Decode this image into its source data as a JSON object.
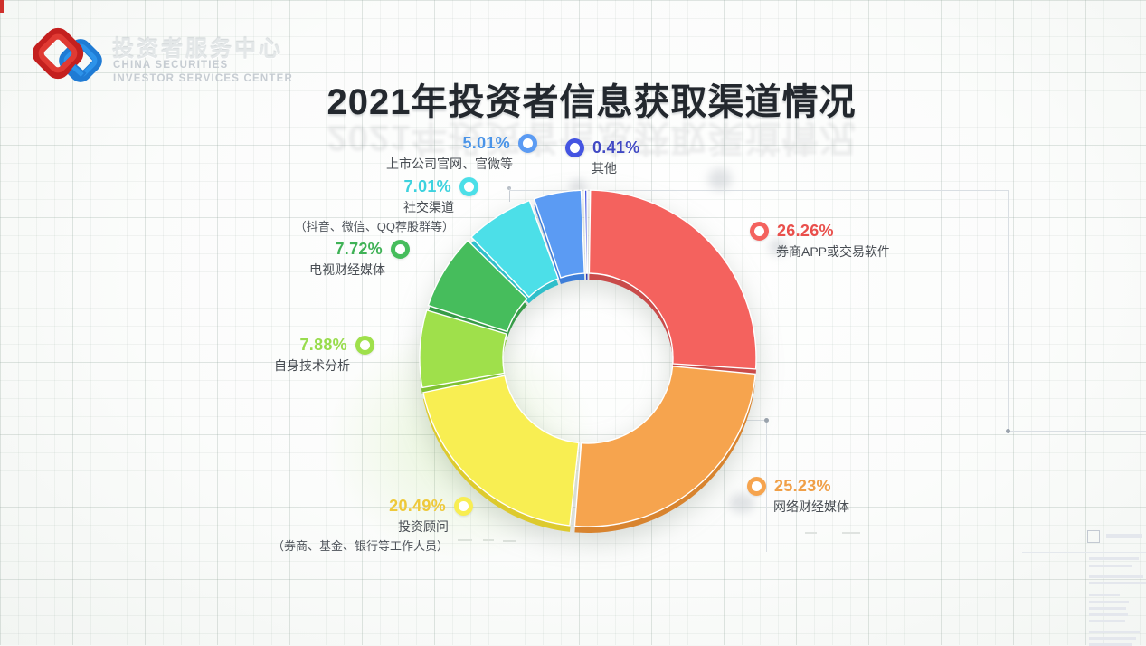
{
  "brand": {
    "logo_title": "投资者服务中心",
    "logo_subtitle_line1": "CHINA SECURITIES",
    "logo_subtitle_line2": "INVESTOR SERVICES CENTER"
  },
  "title": "2021年投资者信息获取渠道情况",
  "chart_data": {
    "type": "pie",
    "variant": "donut",
    "title": "2021年投资者信息获取渠道情况",
    "start_angle_deg": 0,
    "direction": "clockwise",
    "unit": "%",
    "series": [
      {
        "label": "券商APP或交易软件",
        "value": 26.26,
        "percent": "26.26%",
        "color": "#f4625e",
        "dark": "#c94b4a",
        "text_color": "#e94f4b"
      },
      {
        "label": "网络财经媒体",
        "value": 25.23,
        "percent": "25.23%",
        "color": "#f6a44e",
        "dark": "#d8842f",
        "text_color": "#f09f47"
      },
      {
        "label": "投资顾问",
        "sublabel": "（券商、基金、银行等工作人员）",
        "value": 20.49,
        "percent": "20.49%",
        "color": "#f8ee52",
        "dark": "#ddca2e",
        "text_color": "#eec93a"
      },
      {
        "label": "自身技术分析",
        "value": 7.88,
        "percent": "7.88%",
        "color": "#9fe04b",
        "dark": "#7fc232",
        "text_color": "#98dc4d"
      },
      {
        "label": "电视财经媒体",
        "value": 7.72,
        "percent": "7.72%",
        "color": "#46bd5c",
        "dark": "#379b48",
        "text_color": "#3fb256"
      },
      {
        "label": "社交渠道",
        "sublabel": "（抖音、微信、QQ荐股群等）",
        "value": 7.01,
        "percent": "7.01%",
        "color": "#4cdfe8",
        "dark": "#2fbfca",
        "text_color": "#3dd2de"
      },
      {
        "label": "上市公司官网、官微等",
        "value": 5.01,
        "percent": "5.01%",
        "color": "#5b9bf3",
        "dark": "#3e7ed9",
        "text_color": "#4a94e8"
      },
      {
        "label": "其他",
        "value": 0.41,
        "percent": "0.41%",
        "color": "#4454e2",
        "dark": "#2e3abc",
        "text_color": "#4149c4"
      }
    ]
  }
}
